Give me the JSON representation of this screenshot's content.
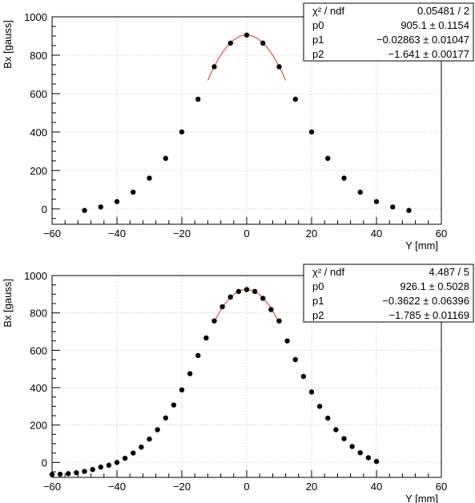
{
  "chart_data": [
    {
      "type": "scatter",
      "xlabel": "Y [mm]",
      "ylabel": "Bx [gauss]",
      "xlim": [
        -60,
        60
      ],
      "ylim": [
        -80,
        1000
      ],
      "xticks": [
        -60,
        -40,
        -20,
        0,
        20,
        40,
        60
      ],
      "xtick_labels": [
        "−60",
        "−40",
        "−20",
        "0",
        "20",
        "40",
        "60"
      ],
      "yticks": [
        0,
        200,
        400,
        600,
        800,
        1000
      ],
      "ytick_labels": [
        "0",
        "200",
        "400",
        "600",
        "800",
        "1000"
      ],
      "grid": true,
      "series": [
        {
          "x": [
            -50,
            -45,
            -40,
            -35,
            -30,
            -25,
            -20,
            -15,
            -10,
            -5,
            0,
            5,
            10,
            15,
            20,
            25,
            30,
            35,
            40,
            45,
            50
          ],
          "y": [
            -8,
            10,
            38,
            87,
            160,
            263,
            401,
            571,
            740,
            863,
            905,
            863,
            740,
            571,
            401,
            263,
            160,
            87,
            38,
            10,
            -8
          ],
          "color": "#000000"
        }
      ],
      "fit": {
        "p0": 905.1,
        "p1": -0.02863,
        "p2": -1.641,
        "xmin": -12,
        "xmax": 12,
        "color": "#e0301e"
      },
      "stats": {
        "rows": [
          {
            "label": "χ² / ndf",
            "value": "0.05481 / 2"
          },
          {
            "label": "p0",
            "value": "905.1 ± 0.1154"
          },
          {
            "label": "p1",
            "value": "−0.02863 ± 0.01047"
          },
          {
            "label": "p2",
            "value": "−1.641 ± 0.00177"
          }
        ]
      }
    },
    {
      "type": "scatter",
      "xlabel": "Y [mm]",
      "ylabel": "Bx [gauss]",
      "xlim": [
        -60,
        60
      ],
      "ylim": [
        -80,
        1000
      ],
      "xticks": [
        -60,
        -40,
        -20,
        0,
        20,
        40,
        60
      ],
      "xtick_labels": [
        "−60",
        "−40",
        "−20",
        "0",
        "20",
        "40",
        "60"
      ],
      "yticks": [
        0,
        200,
        400,
        600,
        800,
        1000
      ],
      "ytick_labels": [
        "0",
        "200",
        "400",
        "600",
        "800",
        "1000"
      ],
      "grid": true,
      "series": [
        {
          "x": [
            -60,
            -57.5,
            -55,
            -52.5,
            -50,
            -47.5,
            -45,
            -42.5,
            -40,
            -37.5,
            -35,
            -32.5,
            -30,
            -27.5,
            -25,
            -22.5,
            -20,
            -17.5,
            -15,
            -12.5,
            -10,
            -7.5,
            -5,
            -2.5,
            0,
            2.5,
            5,
            7.5,
            10,
            12.5,
            15,
            17.5,
            20,
            22.5,
            25,
            27.5,
            30,
            32.5,
            35,
            37.5,
            40
          ],
          "y": [
            -65,
            -63,
            -60,
            -55,
            -48,
            -38,
            -25,
            -15,
            0,
            22,
            50,
            82,
            125,
            175,
            238,
            307,
            388,
            475,
            572,
            666,
            757,
            833,
            885,
            915,
            925,
            915,
            878,
            818,
            757,
            650,
            550,
            460,
            377,
            300,
            237,
            175,
            127,
            85,
            52,
            25,
            5
          ],
          "color": "#000000"
        }
      ],
      "fit": {
        "p0": 926.1,
        "p1": -0.3622,
        "p2": -1.785,
        "xmin": -10,
        "xmax": 10,
        "color": "#e0301e"
      },
      "stats": {
        "rows": [
          {
            "label": "χ² / ndf",
            "value": "4.487 / 5"
          },
          {
            "label": "p0",
            "value": "926.1 ± 0.5028"
          },
          {
            "label": "p1",
            "value": "−0.3622 ± 0.06396"
          },
          {
            "label": "p2",
            "value": "−1.785 ± 0.01169"
          }
        ]
      }
    }
  ]
}
